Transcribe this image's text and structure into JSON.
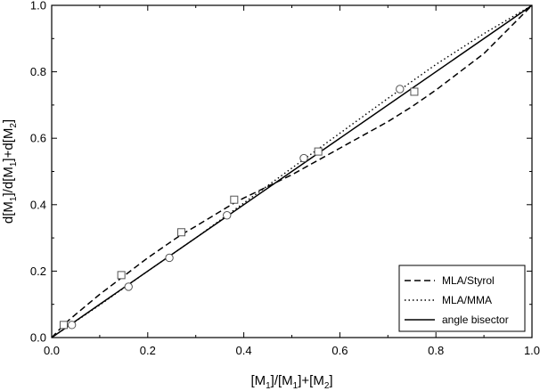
{
  "chart_data": {
    "type": "scatter",
    "xlabel": {
      "parts": [
        {
          "t": "[M"
        },
        {
          "t": "1",
          "sub": true
        },
        {
          "t": "]/[M"
        },
        {
          "t": "1",
          "sub": true
        },
        {
          "t": "]+[M"
        },
        {
          "t": "2",
          "sub": true
        },
        {
          "t": "]"
        }
      ]
    },
    "ylabel": {
      "parts": [
        {
          "t": "d[M"
        },
        {
          "t": "1",
          "sub": true
        },
        {
          "t": "]/d[M"
        },
        {
          "t": "1",
          "sub": true
        },
        {
          "t": "]+d[M"
        },
        {
          "t": "2",
          "sub": true
        },
        {
          "t": "]"
        }
      ]
    },
    "xlim": [
      0.0,
      1.0
    ],
    "ylim": [
      0.0,
      1.0
    ],
    "xticks": [
      0.0,
      0.2,
      0.4,
      0.6,
      0.8,
      1.0
    ],
    "yticks": [
      0.0,
      0.2,
      0.4,
      0.6,
      0.8,
      1.0
    ],
    "xtick_labels": [
      "0.0",
      "0.2",
      "0.4",
      "0.6",
      "0.8",
      "1.0"
    ],
    "ytick_labels": [
      "0.0",
      "0.2",
      "0.4",
      "0.6",
      "0.8",
      "1.0"
    ],
    "grid": false,
    "legend_position": "bottom-right",
    "series": [
      {
        "name": "MLA/Styrol",
        "kind": "line",
        "dash": "dashed",
        "color": "#000000",
        "x": [
          0.0,
          0.03,
          0.05,
          0.1,
          0.15,
          0.2,
          0.27,
          0.3,
          0.38,
          0.4,
          0.5,
          0.55,
          0.6,
          0.7,
          0.75,
          0.8,
          0.9,
          1.0
        ],
        "y": [
          0.0,
          0.045,
          0.07,
          0.13,
          0.185,
          0.24,
          0.31,
          0.335,
          0.405,
          0.42,
          0.49,
          0.53,
          0.57,
          0.65,
          0.695,
          0.745,
          0.855,
          1.0
        ]
      },
      {
        "name": "MLA/MMA",
        "kind": "line",
        "dash": "dotted",
        "color": "#000000",
        "x": [
          0.0,
          0.1,
          0.2,
          0.3,
          0.4,
          0.5,
          0.6,
          0.7,
          0.8,
          0.9,
          1.0
        ],
        "y": [
          0.0,
          0.098,
          0.2,
          0.3,
          0.405,
          0.51,
          0.615,
          0.72,
          0.822,
          0.915,
          1.0
        ]
      },
      {
        "name": "angle bisector",
        "kind": "line",
        "dash": "solid",
        "color": "#000000",
        "x": [
          0.0,
          1.0
        ],
        "y": [
          0.0,
          1.0
        ]
      },
      {
        "kind": "points",
        "marker": "square",
        "x": [
          0.025,
          0.145,
          0.27,
          0.38,
          0.555,
          0.755
        ],
        "y": [
          0.038,
          0.188,
          0.317,
          0.415,
          0.56,
          0.74
        ]
      },
      {
        "kind": "points",
        "marker": "circle",
        "x": [
          0.042,
          0.16,
          0.245,
          0.365,
          0.525,
          0.725
        ],
        "y": [
          0.038,
          0.153,
          0.24,
          0.368,
          0.54,
          0.748
        ]
      }
    ]
  }
}
